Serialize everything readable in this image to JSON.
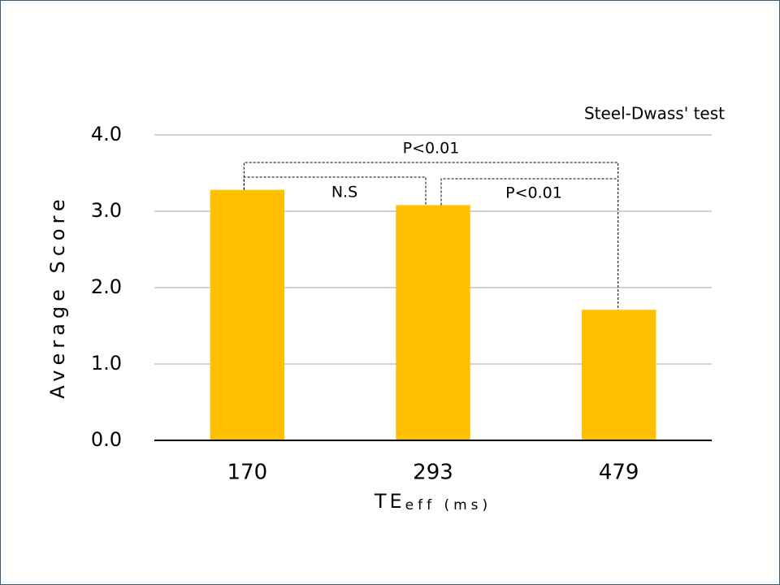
{
  "chart_data": {
    "type": "bar",
    "categories": [
      "170",
      "293",
      "479"
    ],
    "values": [
      3.28,
      3.08,
      1.71
    ],
    "color": "#ffc000",
    "ylim": [
      0,
      4
    ],
    "yticks": [
      {
        "value": 0,
        "label": "0.0"
      },
      {
        "value": 1,
        "label": "1.0"
      },
      {
        "value": 2,
        "label": "2.0"
      },
      {
        "value": 3,
        "label": "3.0"
      },
      {
        "value": 4,
        "label": "4.0"
      }
    ],
    "grid": true,
    "y_label": "Average Score",
    "x_label": {
      "text": "TE",
      "subscript": "eff (ms)"
    },
    "annotations": [
      "Steel-Dwass' test",
      "P<0.01",
      "N.S",
      "P<0.01"
    ]
  }
}
